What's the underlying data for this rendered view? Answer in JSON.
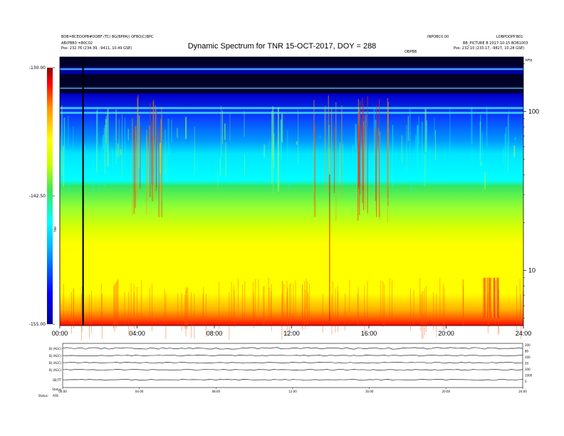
{
  "header": {
    "title": "Dynamic Spectrum for TNR 15-OCT-2017, DOY = 288",
    "left_line1": "BOB=BCEOOPB#OOBF (TC) BG(BPPA)) OFBO(C)BPC",
    "left_line2": "AB(PBB3 =B0C02",
    "left_pos": "Pos:  232.76 (234.39, -9411, 10.49 GSE)",
    "right_line1": "INPOBC0.00",
    "right_line2": "BB_PICTURE B 2017-10-15 BOB1003",
    "right_pos": "Pos:  232.10 (233.17, -9827, 10.28 GSE)",
    "right_tag": "LOBPOOPP.B01",
    "mid_tag": "OBPBB",
    "hz_tag": "kHz"
  },
  "colorbar": {
    "max_label": "-130.00",
    "mid_label": "-142.50",
    "min_label": "-155.00",
    "unit_label": "TNR"
  },
  "chart_data": {
    "type": "heatmap",
    "title": "Dynamic Spectrum for TNR 15-OCT-2017, DOY = 288",
    "x_ticks": [
      "00:00",
      "04:00",
      "08:00",
      "12:00",
      "16:00",
      "20:00",
      "24:00"
    ],
    "x_range_hours": [
      0,
      24
    ],
    "y_scale": "log",
    "y_ticks": [
      "100",
      "10"
    ],
    "y_tick_values": [
      100,
      10
    ],
    "y_range": [
      4.5,
      220
    ],
    "colorbar_range": [
      -155.0,
      -130.0
    ],
    "colormap": [
      "#00009a",
      "#0000ff",
      "#00b4ff",
      "#00ffff",
      "#3ce65a",
      "#c8ff00",
      "#ffff00",
      "#ff9600",
      "#ff0000",
      "#8c0000"
    ],
    "features": {
      "black_band_rows_khz": [
        210,
        185,
        160
      ],
      "cyan_lines_khz": [
        105,
        98
      ],
      "black_vertical_line_hour": 1.2,
      "red_bursts_hours": [
        4.5,
        13.8,
        16.2,
        22.3
      ]
    }
  },
  "lower_panel": {
    "row_labels": [
      "B| (AGC)",
      "B| (AGC)",
      "B| (AGC)",
      "B| (AGC)",
      "(B|)TT",
      "Status"
    ],
    "right_labels": [
      "200",
      "80",
      "100",
      "20",
      "100",
      "1000",
      "0"
    ],
    "x_ticks": [
      "00:00",
      "04:00",
      "08:00",
      "12:00",
      "16:00",
      "20:00",
      "24:00"
    ],
    "status_label": "Status:",
    "status_value": "AFB"
  }
}
